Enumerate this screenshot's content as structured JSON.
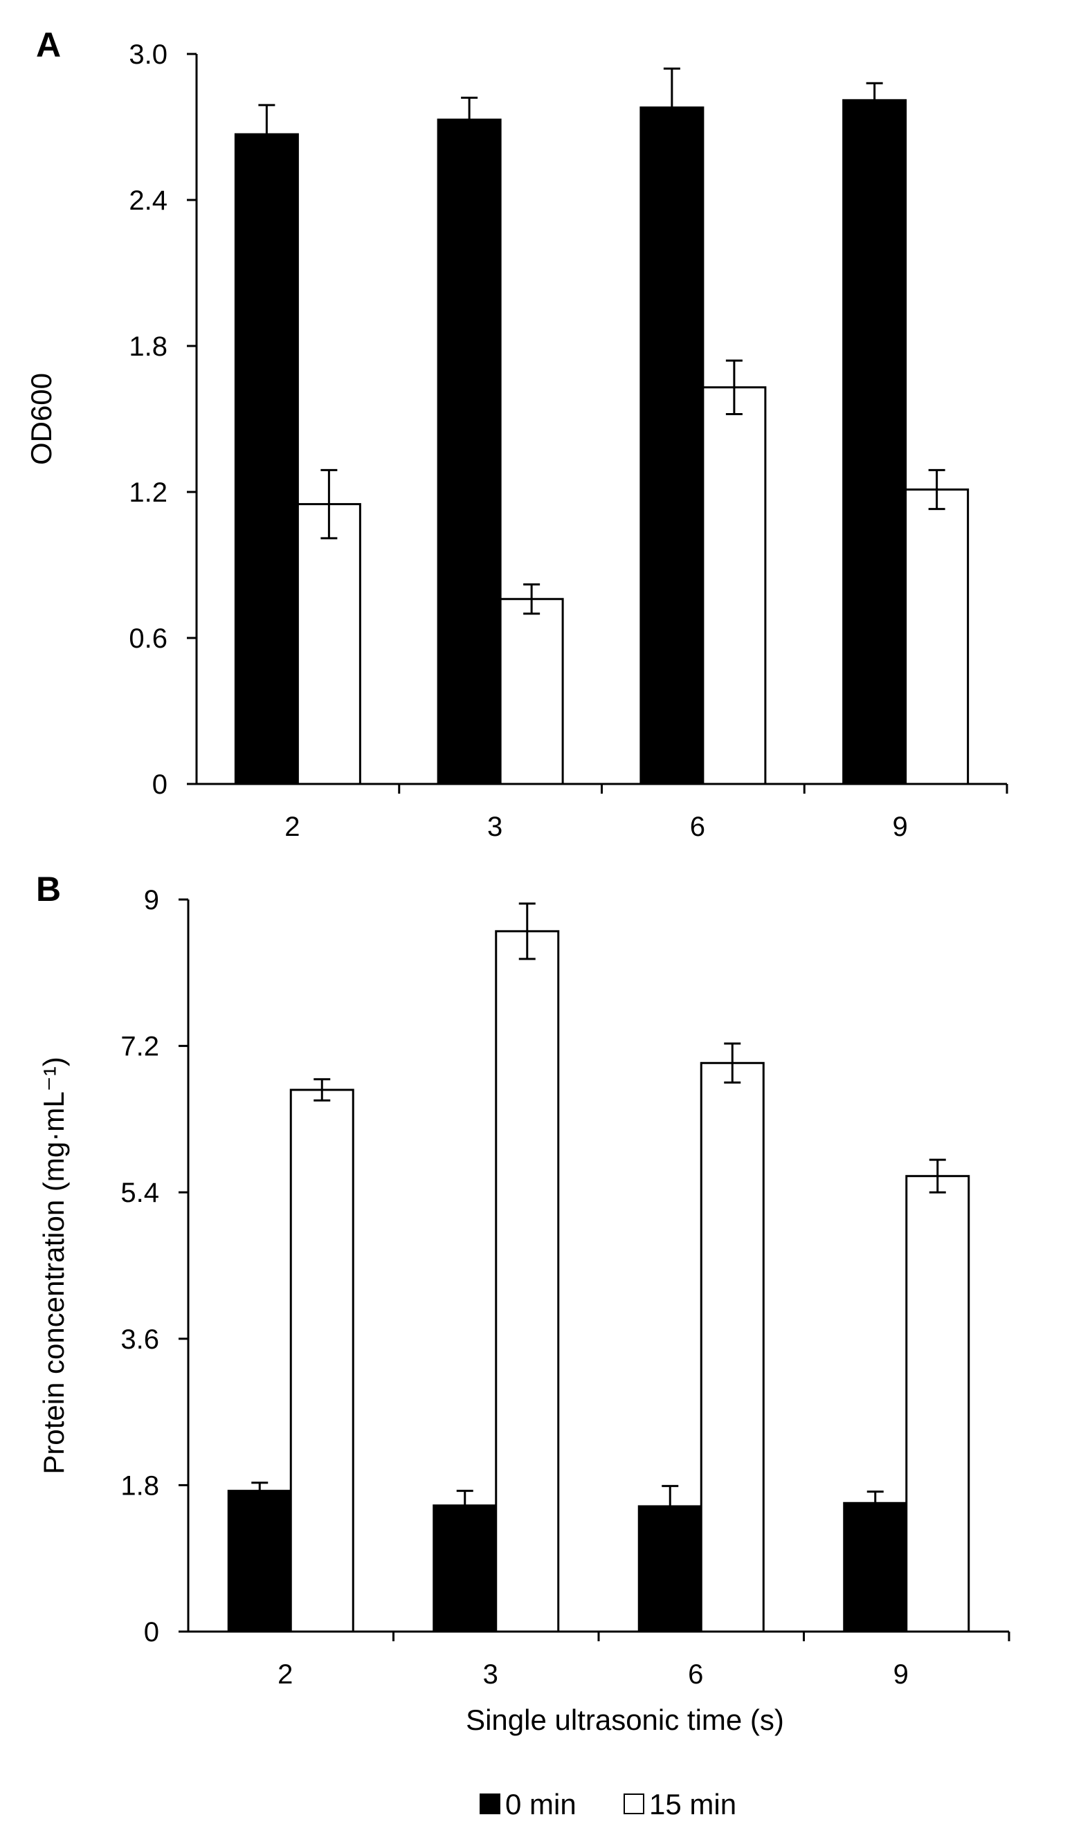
{
  "chart_data": [
    {
      "type": "bar",
      "panel_label": "A",
      "categories": [
        "2",
        "3",
        "6",
        "9"
      ],
      "series": [
        {
          "name": "0 min",
          "color": "#000000",
          "values": [
            2.67,
            2.73,
            2.78,
            2.81
          ],
          "errors": [
            0.12,
            0.09,
            0.16,
            0.07
          ]
        },
        {
          "name": "15 min",
          "color": "#ffffff",
          "values": [
            1.15,
            0.76,
            1.63,
            1.21
          ],
          "errors": [
            0.14,
            0.06,
            0.11,
            0.08
          ]
        }
      ],
      "ylabel": "OD600",
      "xlabel": "",
      "ylim": [
        0,
        3.0
      ],
      "yticks": [
        "0",
        "0.6",
        "1.2",
        "1.8",
        "2.4",
        "3.0"
      ],
      "ytick_values": [
        0,
        0.6,
        1.2,
        1.8,
        2.4,
        3.0
      ],
      "grid": false
    },
    {
      "type": "bar",
      "panel_label": "B",
      "categories": [
        "2",
        "3",
        "6",
        "9"
      ],
      "series": [
        {
          "name": "0 min",
          "color": "#000000",
          "values": [
            1.73,
            1.55,
            1.54,
            1.58
          ],
          "errors": [
            0.1,
            0.18,
            0.25,
            0.14
          ]
        },
        {
          "name": "15 min",
          "color": "#ffffff",
          "values": [
            6.66,
            8.61,
            6.99,
            5.6
          ],
          "errors": [
            0.13,
            0.34,
            0.24,
            0.2
          ]
        }
      ],
      "ylabel": "Protein concentration (mg·mL⁻¹)",
      "xlabel": "Single ultrasonic time (s)",
      "ylim": [
        0,
        9
      ],
      "yticks": [
        "0",
        "1.8",
        "3.6",
        "5.4",
        "7.2",
        "9"
      ],
      "ytick_values": [
        0,
        1.8,
        3.6,
        5.4,
        7.2,
        9
      ],
      "grid": false
    }
  ],
  "legend": {
    "placement": "bottom-center",
    "items": [
      {
        "label": "0 min",
        "color": "#000000"
      },
      {
        "label": "15 min",
        "color": "#ffffff"
      }
    ]
  }
}
